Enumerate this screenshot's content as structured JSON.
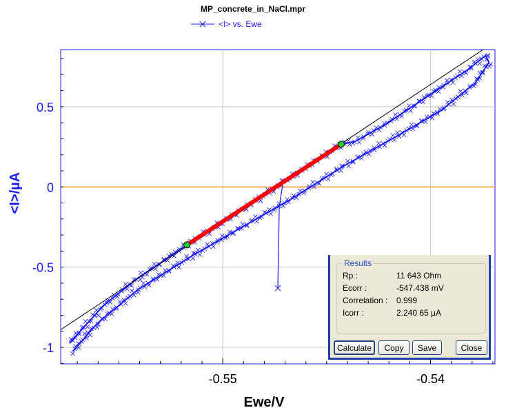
{
  "chart_data": {
    "type": "line",
    "title": "MP_concrete_in_NaCl.mpr",
    "xlabel": "Ewe/V",
    "ylabel": "<I>/µA",
    "xlim": [
      -0.5578,
      -0.5369
    ],
    "ylim": [
      -1.103,
      0.856
    ],
    "xticks": [
      -0.55,
      -0.54
    ],
    "xtick_labels": [
      "-0.55",
      "-0.54"
    ],
    "yticks": [
      0.5,
      0,
      -0.5,
      -1
    ],
    "ytick_labels": [
      "0.5",
      "0",
      "-0.5",
      "-1"
    ],
    "grid": true,
    "legend_position": "top",
    "series": [
      {
        "name": "<I> vs. Ewe",
        "color": "#1a1aff",
        "x": [
          -0.55722,
          -0.55606,
          -0.55407,
          -0.55142,
          -0.54911,
          -0.54679,
          -0.54414,
          -0.54149,
          -0.5395,
          -0.53785,
          -0.53719,
          -0.53735,
          -0.53818,
          -0.54017,
          -0.54215,
          -0.54364,
          -0.5443,
          -0.54712,
          -0.54911,
          -0.55172,
          -0.55407,
          -0.55573,
          -0.55738
        ],
        "y": [
          -1.026,
          -0.854,
          -0.639,
          -0.425,
          -0.253,
          -0.082,
          0.133,
          0.326,
          0.476,
          0.648,
          0.777,
          0.82,
          0.734,
          0.562,
          0.391,
          0.283,
          0.266,
          0.026,
          -0.146,
          -0.361,
          -0.567,
          -0.738,
          -0.974
        ]
      },
      {
        "name": "",
        "color": "#1a1aff",
        "x": [
          -0.54712,
          -0.54728,
          -0.54735
        ],
        "y": [
          0.013,
          -0.124,
          -0.631
        ]
      }
    ],
    "fit_segment": {
      "color": "#ff0000",
      "x": [
        -0.55172,
        -0.5443
      ],
      "y": [
        -0.361,
        0.266
      ],
      "endpoint_color": "#22cc22"
    },
    "fit_line": {
      "color": "#000000",
      "slope_uA_per_V": 85.9,
      "x0": -0.547438
    },
    "zero_line": {
      "y": 0,
      "color": "#ff8c00"
    },
    "axis_color": "#1a1aff"
  },
  "results": {
    "group_label": "Results",
    "rows": [
      {
        "key": "Rp :",
        "value": "11 643 Ohm"
      },
      {
        "key": "Ecorr :",
        "value": "-547.438 mV"
      },
      {
        "key": "Correlation :",
        "value": "0.999"
      },
      {
        "key": "Icorr :",
        "value": "2.240 65 µA"
      }
    ],
    "buttons": {
      "calculate": "Calculate",
      "copy": "Copy",
      "save": "Save",
      "close": "Close"
    }
  }
}
